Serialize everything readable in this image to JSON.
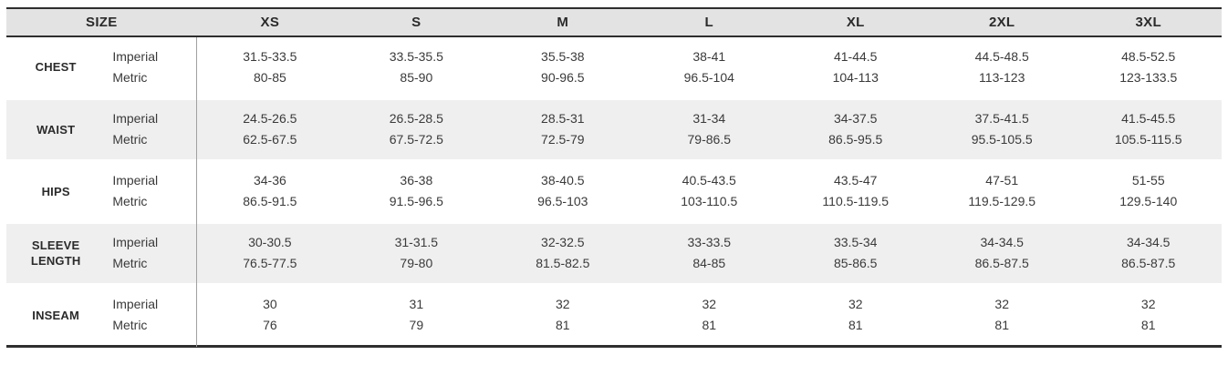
{
  "chart_data": {
    "type": "table",
    "columns": [
      "SIZE",
      "XS",
      "S",
      "M",
      "L",
      "XL",
      "2XL",
      "3XL"
    ],
    "unit_labels": [
      "Imperial",
      "Metric"
    ],
    "rows": [
      {
        "label": "CHEST",
        "imperial": [
          "31.5-33.5",
          "33.5-35.5",
          "35.5-38",
          "38-41",
          "41-44.5",
          "44.5-48.5",
          "48.5-52.5"
        ],
        "metric": [
          "80-85",
          "85-90",
          "90-96.5",
          "96.5-104",
          "104-113",
          "113-123",
          "123-133.5"
        ]
      },
      {
        "label": "WAIST",
        "imperial": [
          "24.5-26.5",
          "26.5-28.5",
          "28.5-31",
          "31-34",
          "34-37.5",
          "37.5-41.5",
          "41.5-45.5"
        ],
        "metric": [
          "62.5-67.5",
          "67.5-72.5",
          "72.5-79",
          "79-86.5",
          "86.5-95.5",
          "95.5-105.5",
          "105.5-115.5"
        ]
      },
      {
        "label": "HIPS",
        "imperial": [
          "34-36",
          "36-38",
          "38-40.5",
          "40.5-43.5",
          "43.5-47",
          "47-51",
          "51-55"
        ],
        "metric": [
          "86.5-91.5",
          "91.5-96.5",
          "96.5-103",
          "103-110.5",
          "110.5-119.5",
          "119.5-129.5",
          "129.5-140"
        ]
      },
      {
        "label": "SLEEVE LENGTH",
        "imperial": [
          "30-30.5",
          "31-31.5",
          "32-32.5",
          "33-33.5",
          "33.5-34",
          "34-34.5",
          "34-34.5"
        ],
        "metric": [
          "76.5-77.5",
          "79-80",
          "81.5-82.5",
          "84-85",
          "85-86.5",
          "86.5-87.5",
          "86.5-87.5"
        ]
      },
      {
        "label": "INSEAM",
        "imperial": [
          "30",
          "31",
          "32",
          "32",
          "32",
          "32",
          "32"
        ],
        "metric": [
          "76",
          "79",
          "81",
          "81",
          "81",
          "81",
          "81"
        ]
      }
    ],
    "layout": {
      "grid": "off",
      "alternating_rows": true
    },
    "colors": {
      "header_bg": "#e3e3e3",
      "alt_row_bg": "#efefef",
      "border_dark": "#2e2e2e",
      "column_divider": "#a0a0a0",
      "text": "#3a3a3a"
    }
  }
}
